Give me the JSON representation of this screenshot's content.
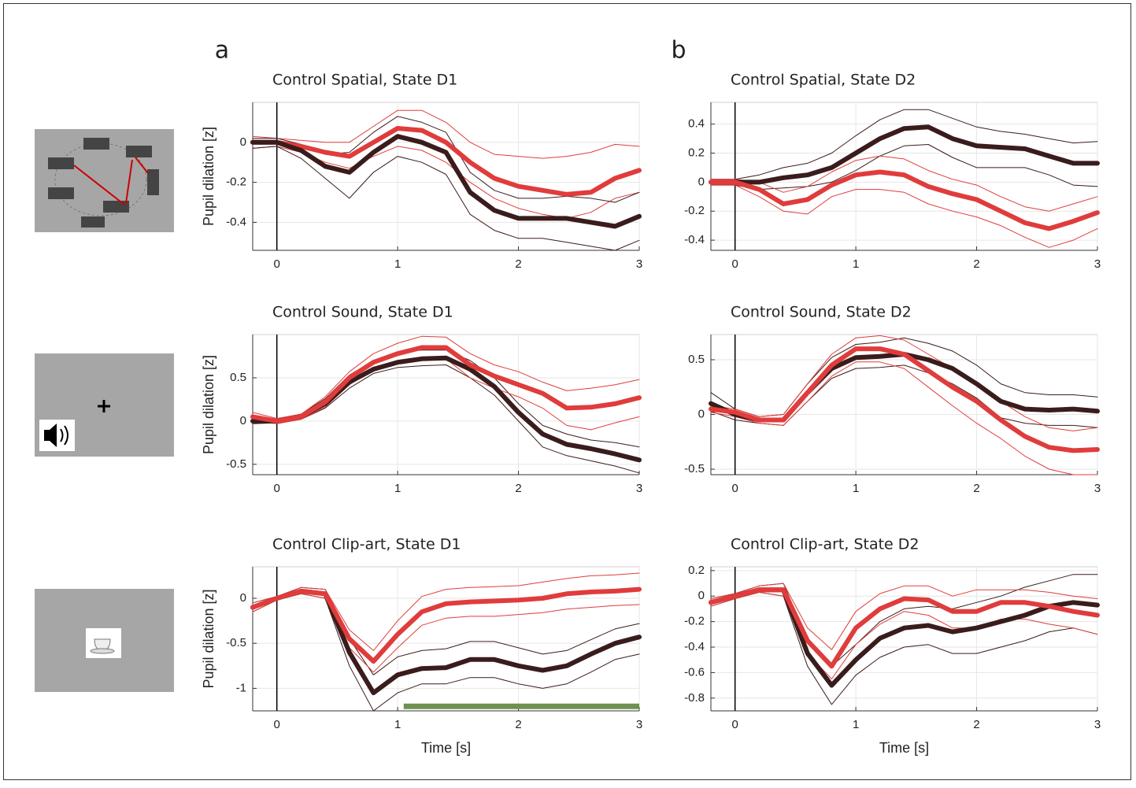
{
  "panel_labels": [
    "a",
    "b"
  ],
  "chart_data": [
    {
      "type": "line",
      "title": "Control Spatial, State D1",
      "y_label": "Pupil dilation [z]",
      "x": [
        -0.2,
        0,
        0.2,
        0.4,
        0.6,
        0.8,
        1,
        1.2,
        1.4,
        1.6,
        1.8,
        2,
        2.2,
        2.4,
        2.6,
        2.8,
        3
      ],
      "xlim": [
        -0.2,
        3
      ],
      "xticks": [
        0,
        1,
        2,
        3
      ],
      "ylim": [
        -0.54,
        0.2
      ],
      "yticks": [
        -0.4,
        -0.2,
        0
      ],
      "grid": true,
      "vline": 0,
      "series": [
        {
          "color": "#e03c3c",
          "line_width": 1,
          "values": [
            0.03,
            0.02,
            0.01,
            0,
            0,
            0.08,
            0.16,
            0.16,
            0.1,
            0,
            -0.06,
            -0.07,
            -0.08,
            -0.07,
            -0.05,
            -0.01,
            -0.02
          ]
        },
        {
          "color": "#e03c3c",
          "line_width": 1,
          "values": [
            -0.03,
            -0.02,
            -0.05,
            -0.1,
            -0.13,
            -0.07,
            -0.02,
            -0.04,
            -0.1,
            -0.2,
            -0.28,
            -0.33,
            -0.36,
            -0.38,
            -0.35,
            -0.28,
            -0.25
          ]
        },
        {
          "color": "#3a1c1c",
          "line_width": 1,
          "values": [
            0.02,
            0.02,
            -0.01,
            -0.06,
            -0.05,
            0.05,
            0.13,
            0.1,
            0.05,
            -0.15,
            -0.24,
            -0.28,
            -0.28,
            -0.27,
            -0.28,
            -0.3,
            -0.25
          ]
        },
        {
          "color": "#3a1c1c",
          "line_width": 1,
          "values": [
            -0.03,
            -0.02,
            -0.08,
            -0.18,
            -0.28,
            -0.15,
            -0.07,
            -0.1,
            -0.16,
            -0.36,
            -0.44,
            -0.48,
            -0.48,
            -0.5,
            -0.52,
            -0.54,
            -0.49
          ]
        },
        {
          "color": "#e03c3c",
          "line_width": 6,
          "values": [
            0,
            0,
            -0.02,
            -0.05,
            -0.07,
            0,
            0.07,
            0.06,
            0,
            -0.1,
            -0.18,
            -0.22,
            -0.24,
            -0.26,
            -0.25,
            -0.18,
            -0.14
          ]
        },
        {
          "color": "#3a1c1c",
          "line_width": 6,
          "values": [
            0,
            0,
            -0.04,
            -0.12,
            -0.15,
            -0.05,
            0.03,
            0,
            -0.05,
            -0.25,
            -0.34,
            -0.38,
            -0.38,
            -0.38,
            -0.4,
            -0.42,
            -0.37
          ]
        }
      ]
    },
    {
      "type": "line",
      "title": "Control Spatial, State D2",
      "x": [
        -0.2,
        0,
        0.2,
        0.4,
        0.6,
        0.8,
        1,
        1.2,
        1.4,
        1.6,
        1.8,
        2,
        2.2,
        2.4,
        2.6,
        2.8,
        3
      ],
      "xlim": [
        -0.2,
        3
      ],
      "xticks": [
        0,
        1,
        2,
        3
      ],
      "ylim": [
        -0.47,
        0.55
      ],
      "yticks": [
        -0.4,
        -0.2,
        0,
        0.2,
        0.4
      ],
      "grid": true,
      "vline": 0,
      "series": [
        {
          "color": "#3a1c1c",
          "line_width": 1,
          "values": [
            0.02,
            0.02,
            0.05,
            0.1,
            0.13,
            0.2,
            0.32,
            0.43,
            0.5,
            0.5,
            0.44,
            0.38,
            0.35,
            0.33,
            0.3,
            0.27,
            0.28
          ]
        },
        {
          "color": "#3a1c1c",
          "line_width": 1,
          "values": [
            -0.02,
            -0.02,
            -0.05,
            -0.04,
            -0.03,
            0,
            0.08,
            0.18,
            0.25,
            0.26,
            0.17,
            0.1,
            0.1,
            0.1,
            0.05,
            -0.02,
            -0.03
          ]
        },
        {
          "color": "#e03c3c",
          "line_width": 1,
          "values": [
            0.02,
            0.02,
            0,
            -0.07,
            -0.03,
            0.07,
            0.15,
            0.18,
            0.16,
            0.08,
            0.02,
            -0.02,
            -0.1,
            -0.17,
            -0.2,
            -0.15,
            -0.1
          ]
        },
        {
          "color": "#e03c3c",
          "line_width": 1,
          "values": [
            -0.02,
            -0.02,
            -0.1,
            -0.2,
            -0.22,
            -0.1,
            -0.05,
            -0.05,
            -0.07,
            -0.15,
            -0.2,
            -0.24,
            -0.3,
            -0.38,
            -0.45,
            -0.4,
            -0.32
          ]
        },
        {
          "color": "#3a1c1c",
          "line_width": 6,
          "values": [
            0,
            0,
            0,
            0.03,
            0.05,
            0.1,
            0.2,
            0.3,
            0.37,
            0.38,
            0.3,
            0.25,
            0.24,
            0.23,
            0.18,
            0.13,
            0.13
          ]
        },
        {
          "color": "#e03c3c",
          "line_width": 6,
          "values": [
            0,
            0,
            -0.05,
            -0.15,
            -0.12,
            -0.02,
            0.05,
            0.07,
            0.05,
            -0.03,
            -0.08,
            -0.12,
            -0.2,
            -0.28,
            -0.32,
            -0.27,
            -0.21
          ]
        }
      ]
    },
    {
      "type": "line",
      "title": "Control Sound, State D1",
      "y_label": "Pupil dilation [z]",
      "x": [
        -0.2,
        0,
        0.2,
        0.4,
        0.6,
        0.8,
        1,
        1.2,
        1.4,
        1.6,
        1.8,
        2,
        2.2,
        2.4,
        2.6,
        2.8,
        3
      ],
      "xlim": [
        -0.2,
        3
      ],
      "xticks": [
        0,
        1,
        2,
        3
      ],
      "ylim": [
        -0.62,
        1.0
      ],
      "yticks": [
        -0.5,
        0,
        0.5
      ],
      "grid": true,
      "vline": 0,
      "series": [
        {
          "color": "#3a1c1c",
          "line_width": 1,
          "values": [
            0.03,
            0.02,
            0.08,
            0.26,
            0.53,
            0.7,
            0.8,
            0.82,
            0.82,
            0.7,
            0.5,
            0.2,
            -0.05,
            -0.15,
            -0.22,
            -0.25,
            -0.3
          ]
        },
        {
          "color": "#3a1c1c",
          "line_width": 1,
          "values": [
            -0.03,
            -0.02,
            0.02,
            0.15,
            0.38,
            0.55,
            0.62,
            0.64,
            0.65,
            0.5,
            0.3,
            0,
            -0.3,
            -0.4,
            -0.46,
            -0.52,
            -0.6
          ]
        },
        {
          "color": "#e03c3c",
          "line_width": 1,
          "values": [
            0.1,
            0.03,
            0.08,
            0.28,
            0.57,
            0.78,
            0.9,
            0.98,
            0.97,
            0.78,
            0.65,
            0.57,
            0.45,
            0.35,
            0.38,
            0.42,
            0.48
          ]
        },
        {
          "color": "#e03c3c",
          "line_width": 1,
          "values": [
            0,
            -0.03,
            0.02,
            0.16,
            0.42,
            0.6,
            0.68,
            0.73,
            0.72,
            0.5,
            0.38,
            0.28,
            0.15,
            -0.05,
            -0.1,
            -0.02,
            0.05
          ]
        },
        {
          "color": "#3a1c1c",
          "line_width": 6,
          "values": [
            0,
            0,
            0.05,
            0.2,
            0.45,
            0.6,
            0.68,
            0.72,
            0.73,
            0.6,
            0.4,
            0.1,
            -0.15,
            -0.27,
            -0.32,
            -0.38,
            -0.45
          ]
        },
        {
          "color": "#e03c3c",
          "line_width": 6,
          "values": [
            0.05,
            0,
            0.05,
            0.22,
            0.5,
            0.68,
            0.78,
            0.85,
            0.85,
            0.65,
            0.52,
            0.42,
            0.32,
            0.15,
            0.16,
            0.2,
            0.27
          ]
        }
      ]
    },
    {
      "type": "line",
      "title": "Control Sound, State D2",
      "x": [
        -0.2,
        0,
        0.2,
        0.4,
        0.6,
        0.8,
        1,
        1.2,
        1.4,
        1.6,
        1.8,
        2,
        2.2,
        2.4,
        2.6,
        2.8,
        3
      ],
      "xlim": [
        -0.2,
        3
      ],
      "xticks": [
        0,
        1,
        2,
        3
      ],
      "ylim": [
        -0.55,
        0.73
      ],
      "yticks": [
        -0.5,
        0,
        0.5
      ],
      "grid": true,
      "vline": 0,
      "series": [
        {
          "color": "#3a1c1c",
          "line_width": 1,
          "values": [
            0.2,
            0.05,
            -0.02,
            0,
            0.28,
            0.52,
            0.64,
            0.66,
            0.7,
            0.65,
            0.58,
            0.45,
            0.28,
            0.2,
            0.18,
            0.18,
            0.16
          ]
        },
        {
          "color": "#3a1c1c",
          "line_width": 1,
          "values": [
            0.03,
            -0.05,
            -0.08,
            -0.1,
            0.12,
            0.33,
            0.42,
            0.43,
            0.45,
            0.38,
            0.28,
            0.15,
            -0.03,
            -0.08,
            -0.1,
            -0.1,
            -0.12
          ]
        },
        {
          "color": "#e03c3c",
          "line_width": 1,
          "values": [
            0.08,
            0.05,
            -0.02,
            0,
            0.28,
            0.55,
            0.7,
            0.72,
            0.68,
            0.55,
            0.42,
            0.3,
            0.12,
            -0.02,
            -0.12,
            -0.15,
            -0.12
          ]
        },
        {
          "color": "#e03c3c",
          "line_width": 1,
          "values": [
            0.02,
            -0.02,
            -0.08,
            -0.1,
            0.12,
            0.35,
            0.48,
            0.48,
            0.42,
            0.25,
            0.08,
            -0.08,
            -0.22,
            -0.38,
            -0.5,
            -0.55,
            -0.55
          ]
        },
        {
          "color": "#3a1c1c",
          "line_width": 6,
          "values": [
            0.1,
            0,
            -0.05,
            -0.05,
            0.2,
            0.42,
            0.52,
            0.53,
            0.55,
            0.5,
            0.42,
            0.28,
            0.12,
            0.05,
            0.04,
            0.05,
            0.03
          ]
        },
        {
          "color": "#e03c3c",
          "line_width": 6,
          "values": [
            0.05,
            0.02,
            -0.05,
            -0.05,
            0.2,
            0.45,
            0.6,
            0.6,
            0.55,
            0.4,
            0.25,
            0.12,
            -0.05,
            -0.2,
            -0.3,
            -0.33,
            -0.32
          ]
        }
      ]
    },
    {
      "type": "line",
      "title": "Control Clip-art, State D1",
      "y_label": "Pupil dilation [z]",
      "x_label": "Time [s]",
      "x": [
        -0.2,
        0,
        0.2,
        0.4,
        0.6,
        0.8,
        1,
        1.2,
        1.4,
        1.6,
        1.8,
        2,
        2.2,
        2.4,
        2.6,
        2.8,
        3
      ],
      "xlim": [
        -0.2,
        3
      ],
      "xticks": [
        0,
        1,
        2,
        3
      ],
      "ylim": [
        -1.25,
        0.35
      ],
      "yticks": [
        -1,
        -0.5,
        0
      ],
      "grid": true,
      "vline": 0,
      "sig_bar": {
        "x": [
          1.05,
          3
        ],
        "y": -1.2,
        "color": "#6f9150"
      },
      "series": [
        {
          "color": "#3a1c1c",
          "line_width": 1,
          "values": [
            -0.05,
            0.02,
            0.12,
            0.1,
            -0.45,
            -0.85,
            -0.65,
            -0.58,
            -0.56,
            -0.48,
            -0.48,
            -0.55,
            -0.62,
            -0.58,
            -0.46,
            -0.34,
            -0.28
          ]
        },
        {
          "color": "#3a1c1c",
          "line_width": 1,
          "values": [
            -0.15,
            -0.02,
            0.05,
            0,
            -0.75,
            -1.25,
            -1.05,
            -0.95,
            -0.95,
            -0.88,
            -0.88,
            -0.95,
            -1,
            -0.95,
            -0.82,
            -0.68,
            -0.62
          ]
        },
        {
          "color": "#e03c3c",
          "line_width": 1,
          "values": [
            -0.05,
            0.02,
            0.12,
            0.1,
            -0.35,
            -0.58,
            -0.25,
            0.02,
            0.1,
            0.12,
            0.13,
            0.14,
            0.18,
            0.22,
            0.25,
            0.26,
            0.28
          ]
        },
        {
          "color": "#e03c3c",
          "line_width": 1,
          "values": [
            -0.15,
            -0.02,
            0.05,
            0,
            -0.55,
            -0.82,
            -0.55,
            -0.3,
            -0.22,
            -0.2,
            -0.2,
            -0.18,
            -0.16,
            -0.12,
            -0.1,
            -0.08,
            -0.07
          ]
        },
        {
          "color": "#3a1c1c",
          "line_width": 6,
          "values": [
            -0.1,
            0,
            0.08,
            0.05,
            -0.6,
            -1.05,
            -0.85,
            -0.78,
            -0.77,
            -0.68,
            -0.68,
            -0.75,
            -0.8,
            -0.75,
            -0.62,
            -0.5,
            -0.43
          ]
        },
        {
          "color": "#e03c3c",
          "line_width": 6,
          "values": [
            -0.1,
            0,
            0.08,
            0.05,
            -0.45,
            -0.7,
            -0.4,
            -0.15,
            -0.06,
            -0.04,
            -0.03,
            -0.02,
            0,
            0.05,
            0.07,
            0.08,
            0.1
          ]
        }
      ]
    },
    {
      "type": "line",
      "title": "Control Clip-art, State D2",
      "x_label": "Time [s]",
      "x": [
        -0.2,
        0,
        0.2,
        0.4,
        0.6,
        0.8,
        1,
        1.2,
        1.4,
        1.6,
        1.8,
        2,
        2.2,
        2.4,
        2.6,
        2.8,
        3
      ],
      "xlim": [
        -0.2,
        3
      ],
      "xticks": [
        0,
        1,
        2,
        3
      ],
      "ylim": [
        -0.9,
        0.23
      ],
      "yticks": [
        -0.8,
        -0.6,
        -0.4,
        -0.2,
        0,
        0.2
      ],
      "grid": true,
      "vline": 0,
      "series": [
        {
          "color": "#3a1c1c",
          "line_width": 1,
          "values": [
            -0.02,
            0.02,
            0.08,
            0.1,
            -0.35,
            -0.55,
            -0.38,
            -0.2,
            -0.1,
            -0.08,
            -0.1,
            -0.05,
            0,
            0.07,
            0.12,
            0.17,
            0.17
          ]
        },
        {
          "color": "#3a1c1c",
          "line_width": 1,
          "values": [
            -0.08,
            -0.02,
            0.03,
            0,
            -0.55,
            -0.85,
            -0.62,
            -0.48,
            -0.4,
            -0.38,
            -0.45,
            -0.45,
            -0.4,
            -0.35,
            -0.28,
            -0.25,
            -0.3
          ]
        },
        {
          "color": "#e03c3c",
          "line_width": 1,
          "values": [
            -0.02,
            0.02,
            0.08,
            0.1,
            -0.25,
            -0.42,
            -0.12,
            0.02,
            0.08,
            0.08,
            0,
            0.05,
            0.05,
            0.05,
            0.03,
            0,
            -0.02
          ]
        },
        {
          "color": "#e03c3c",
          "line_width": 1,
          "values": [
            -0.08,
            -0.02,
            0.03,
            0,
            -0.45,
            -0.65,
            -0.38,
            -0.22,
            -0.12,
            -0.15,
            -0.25,
            -0.25,
            -0.18,
            -0.18,
            -0.22,
            -0.25,
            -0.3
          ]
        },
        {
          "color": "#3a1c1c",
          "line_width": 6,
          "values": [
            -0.05,
            0,
            0.05,
            0.05,
            -0.45,
            -0.7,
            -0.5,
            -0.33,
            -0.25,
            -0.23,
            -0.28,
            -0.25,
            -0.2,
            -0.15,
            -0.08,
            -0.05,
            -0.07
          ]
        },
        {
          "color": "#e03c3c",
          "line_width": 6,
          "values": [
            -0.05,
            0,
            0.05,
            0.05,
            -0.35,
            -0.55,
            -0.25,
            -0.1,
            -0.02,
            -0.03,
            -0.12,
            -0.12,
            -0.05,
            -0.05,
            -0.08,
            -0.12,
            -0.15
          ]
        }
      ]
    }
  ]
}
